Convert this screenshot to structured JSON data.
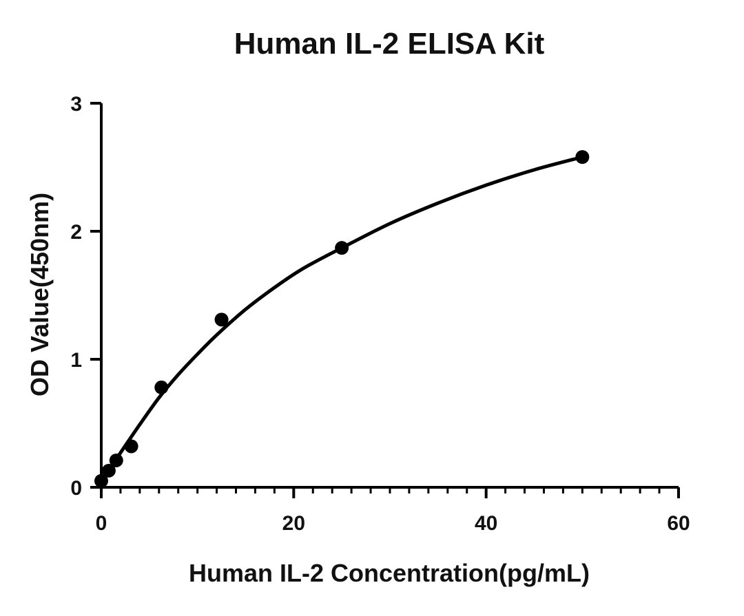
{
  "chart_data": {
    "type": "scatter",
    "title": "Human IL-2 ELISA Kit",
    "xlabel": "Human IL-2 Concentration(pg/mL)",
    "ylabel": "OD Value(450nm)",
    "xlim": [
      0,
      60
    ],
    "ylim": [
      0,
      3
    ],
    "x_ticks": [
      0,
      20,
      40,
      60
    ],
    "y_ticks": [
      0,
      1,
      2,
      3
    ],
    "x_minor_step": 2,
    "grid": false,
    "legend": "none",
    "color": "#000000",
    "series": [
      {
        "x": [
          0,
          0.78,
          1.56,
          3.12,
          6.25,
          12.5,
          25,
          50
        ],
        "y": [
          0.05,
          0.13,
          0.21,
          0.32,
          0.78,
          1.31,
          1.87,
          2.58
        ]
      }
    ],
    "fit_curve": {
      "x": [
        0,
        2,
        4,
        6,
        8,
        10,
        12,
        15,
        18,
        21,
        25,
        30,
        35,
        40,
        45,
        50
      ],
      "y": [
        0.05,
        0.27,
        0.49,
        0.7,
        0.88,
        1.04,
        1.19,
        1.39,
        1.56,
        1.71,
        1.87,
        2.06,
        2.22,
        2.36,
        2.48,
        2.58
      ]
    }
  }
}
